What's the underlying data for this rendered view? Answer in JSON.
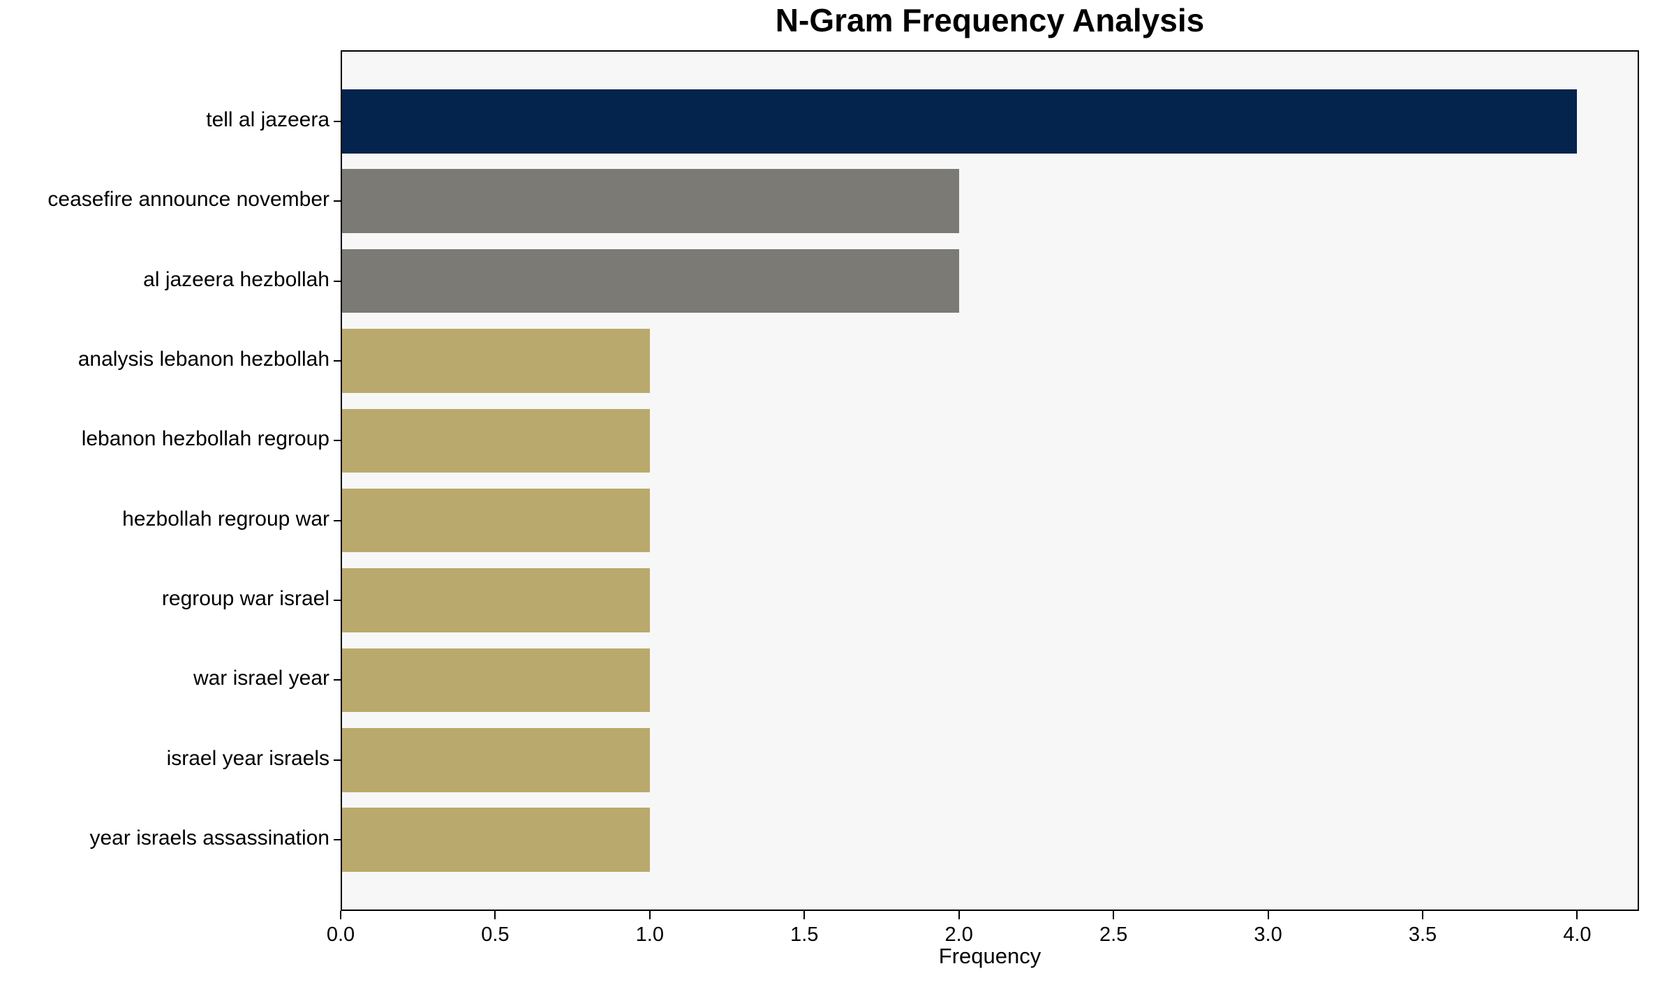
{
  "chart_data": {
    "type": "bar",
    "orientation": "horizontal",
    "title": "N-Gram Frequency Analysis",
    "xlabel": "Frequency",
    "ylabel": "",
    "categories": [
      "tell al jazeera",
      "ceasefire announce november",
      "al jazeera hezbollah",
      "analysis lebanon hezbollah",
      "lebanon hezbollah regroup",
      "hezbollah regroup war",
      "regroup war israel",
      "war israel year",
      "israel year israels",
      "year israels assassination"
    ],
    "values": [
      4,
      2,
      2,
      1,
      1,
      1,
      1,
      1,
      1,
      1
    ],
    "bar_colors": [
      "#04234d",
      "#7b7a75",
      "#7b7a75",
      "#b9a96c",
      "#b9a96c",
      "#b9a96c",
      "#b9a96c",
      "#b9a96c",
      "#b9a96c",
      "#b9a96c"
    ],
    "xlim": [
      0,
      4.2
    ],
    "xticks": [
      {
        "value": 0.0,
        "label": "0.0"
      },
      {
        "value": 0.5,
        "label": "0.5"
      },
      {
        "value": 1.0,
        "label": "1.0"
      },
      {
        "value": 1.5,
        "label": "1.5"
      },
      {
        "value": 2.0,
        "label": "2.0"
      },
      {
        "value": 2.5,
        "label": "2.5"
      },
      {
        "value": 3.0,
        "label": "3.0"
      },
      {
        "value": 3.5,
        "label": "3.5"
      },
      {
        "value": 4.0,
        "label": "4.0"
      }
    ],
    "grid": false,
    "legend": null,
    "colors": {
      "plot_background": "#f7f7f7",
      "figure_background": "#ffffff",
      "spine": "#000000",
      "text": "#000000"
    }
  }
}
